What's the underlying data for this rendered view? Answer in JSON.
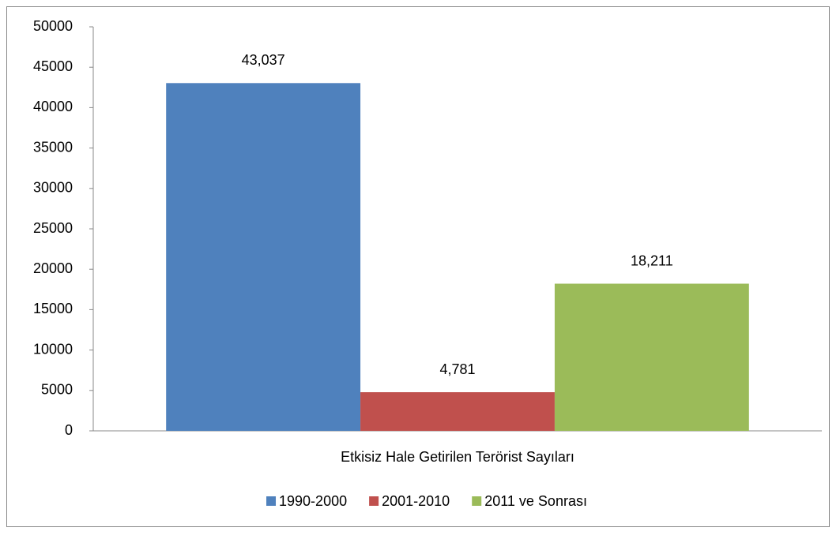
{
  "chart_data": {
    "type": "bar",
    "categories": [
      "Etkisiz Hale Getirilen Terörist Sayıları"
    ],
    "series": [
      {
        "name": "1990-2000",
        "color": "#4f81bd",
        "values": [
          43037
        ],
        "value_labels": [
          "43,037"
        ]
      },
      {
        "name": "2001-2010",
        "color": "#c0504d",
        "values": [
          4781
        ],
        "value_labels": [
          "4,781"
        ]
      },
      {
        "name": "2011 ve Sonrası",
        "color": "#9bbb59",
        "values": [
          18211
        ],
        "value_labels": [
          "18,211"
        ]
      }
    ],
    "ylim": [
      0,
      50000
    ],
    "yticks": [
      0,
      5000,
      10000,
      15000,
      20000,
      25000,
      30000,
      35000,
      40000,
      45000,
      50000
    ],
    "legend": "bottom"
  }
}
